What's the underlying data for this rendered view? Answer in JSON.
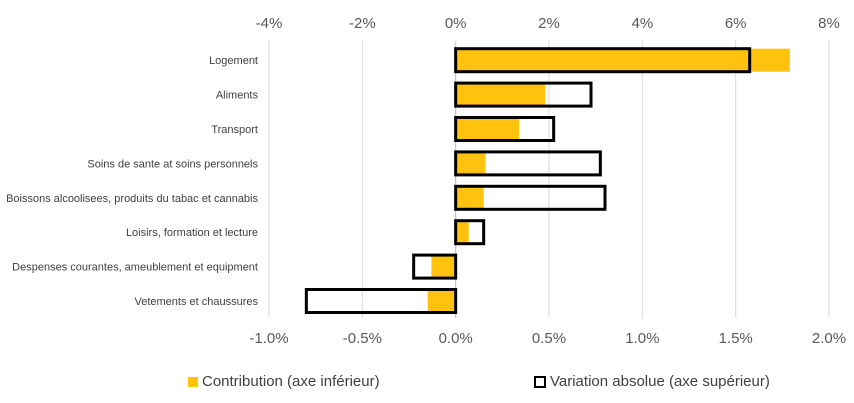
{
  "chart_data": {
    "type": "bar",
    "orientation": "horizontal",
    "categories": [
      "Logement",
      "Aliments",
      "Transport",
      "Soins de sante at soins personnels",
      "Boissons alcoolisees, produits du tabac et cannabis",
      "Loisirs, formation et lecture",
      "Despenses courantes, ameublement et equipment",
      "Vetements et chaussures"
    ],
    "series": [
      {
        "name": "Contribution (axe inférieur)",
        "axis": "bottom",
        "color": "#FFC20E",
        "values": [
          1.79,
          0.48,
          0.34,
          0.16,
          0.15,
          0.07,
          -0.13,
          -0.15
        ]
      },
      {
        "name": "Variation absolue (axe supérieur)",
        "axis": "top",
        "style": "outline",
        "color": "#000000",
        "values": [
          6.3,
          2.9,
          2.1,
          3.1,
          3.2,
          0.6,
          -0.9,
          -3.2
        ]
      }
    ],
    "top_axis": {
      "min": -4,
      "max": 8,
      "ticks": [
        "-4%",
        "-2%",
        "0%",
        "2%",
        "4%",
        "6%",
        "8%"
      ]
    },
    "bottom_axis": {
      "min": -1.0,
      "max": 2.0,
      "ticks": [
        "-1.0%",
        "-0.5%",
        "0.0%",
        "0.5%",
        "1.0%",
        "1.5%",
        "2.0%"
      ]
    },
    "grid": "vertical",
    "legend_position": "bottom"
  }
}
